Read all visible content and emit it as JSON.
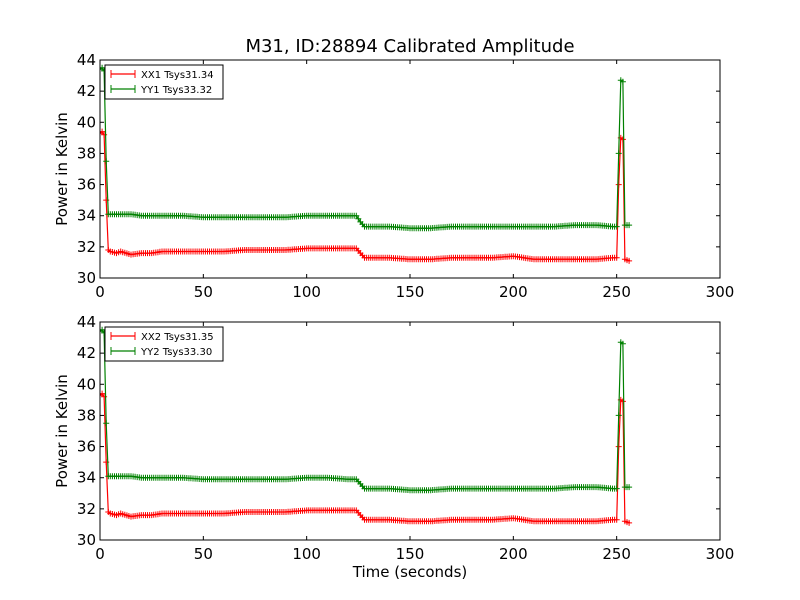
{
  "figure": {
    "title": "M31, ID:28894 Calibrated Amplitude",
    "xlabel": "Time (seconds)"
  },
  "colors": {
    "xx": "#ff0000",
    "yy": "#008000",
    "axis": "#000000",
    "background": "#ffffff"
  },
  "chart_data": [
    {
      "type": "line",
      "title": "M31, ID:28894 Calibrated Amplitude",
      "xlabel": "",
      "ylabel": "Power in Kelvin",
      "xlim": [
        0,
        300
      ],
      "ylim": [
        30,
        44
      ],
      "xticks": [
        0,
        50,
        100,
        150,
        200,
        250,
        300
      ],
      "yticks": [
        30,
        32,
        34,
        36,
        38,
        40,
        42,
        44
      ],
      "grid": false,
      "legend_position": "top-left",
      "series": [
        {
          "name": "XX1 Tsys31.34",
          "color": "#ff0000",
          "marker": "+",
          "x": [
            0,
            1,
            2,
            3,
            4,
            5,
            8,
            10,
            15,
            20,
            25,
            30,
            40,
            50,
            60,
            70,
            80,
            90,
            100,
            110,
            120,
            124,
            126,
            128,
            130,
            140,
            150,
            160,
            170,
            180,
            190,
            200,
            210,
            220,
            230,
            240,
            248,
            250,
            251,
            252,
            253,
            254,
            256
          ],
          "y": [
            39.3,
            39.4,
            39.2,
            35.0,
            31.8,
            31.7,
            31.6,
            31.7,
            31.5,
            31.6,
            31.6,
            31.7,
            31.7,
            31.7,
            31.7,
            31.8,
            31.8,
            31.8,
            31.9,
            31.9,
            31.9,
            31.9,
            31.6,
            31.3,
            31.3,
            31.3,
            31.2,
            31.2,
            31.3,
            31.3,
            31.3,
            31.4,
            31.2,
            31.2,
            31.2,
            31.2,
            31.3,
            31.3,
            36.0,
            39.0,
            38.9,
            31.2,
            31.1
          ]
        },
        {
          "name": "YY1 Tsys33.32",
          "color": "#008000",
          "marker": "+",
          "x": [
            0,
            1,
            2,
            3,
            4,
            5,
            8,
            10,
            15,
            20,
            25,
            30,
            40,
            50,
            60,
            70,
            80,
            90,
            100,
            110,
            120,
            124,
            126,
            128,
            130,
            140,
            150,
            160,
            170,
            180,
            190,
            200,
            210,
            220,
            230,
            240,
            248,
            250,
            251,
            252,
            253,
            254,
            256
          ],
          "y": [
            43.4,
            43.5,
            43.3,
            37.5,
            34.1,
            34.1,
            34.1,
            34.1,
            34.1,
            34.0,
            34.0,
            34.0,
            34.0,
            33.9,
            33.9,
            33.9,
            33.9,
            33.9,
            34.0,
            34.0,
            34.0,
            34.0,
            33.6,
            33.3,
            33.3,
            33.3,
            33.2,
            33.2,
            33.3,
            33.3,
            33.3,
            33.3,
            33.3,
            33.3,
            33.4,
            33.4,
            33.3,
            33.3,
            38.0,
            42.7,
            42.6,
            33.4,
            33.4
          ]
        }
      ]
    },
    {
      "type": "line",
      "title": "",
      "xlabel": "Time (seconds)",
      "ylabel": "Power in Kelvin",
      "xlim": [
        0,
        300
      ],
      "ylim": [
        30,
        44
      ],
      "xticks": [
        0,
        50,
        100,
        150,
        200,
        250,
        300
      ],
      "yticks": [
        30,
        32,
        34,
        36,
        38,
        40,
        42,
        44
      ],
      "grid": false,
      "legend_position": "top-left",
      "series": [
        {
          "name": "XX2 Tsys31.35",
          "color": "#ff0000",
          "marker": "+",
          "x": [
            0,
            1,
            2,
            3,
            4,
            5,
            8,
            10,
            15,
            20,
            25,
            30,
            40,
            50,
            60,
            70,
            80,
            90,
            100,
            110,
            120,
            124,
            126,
            128,
            130,
            140,
            150,
            160,
            170,
            180,
            190,
            200,
            210,
            220,
            230,
            240,
            248,
            250,
            251,
            252,
            253,
            254,
            256
          ],
          "y": [
            39.3,
            39.4,
            39.2,
            35.0,
            31.8,
            31.7,
            31.6,
            31.7,
            31.5,
            31.6,
            31.6,
            31.7,
            31.7,
            31.7,
            31.7,
            31.8,
            31.8,
            31.8,
            31.9,
            31.9,
            31.9,
            31.9,
            31.6,
            31.3,
            31.3,
            31.3,
            31.2,
            31.2,
            31.3,
            31.3,
            31.3,
            31.4,
            31.2,
            31.2,
            31.2,
            31.2,
            31.3,
            31.3,
            36.0,
            39.0,
            38.9,
            31.2,
            31.1
          ]
        },
        {
          "name": "YY2 Tsys33.30",
          "color": "#008000",
          "marker": "+",
          "x": [
            0,
            1,
            2,
            3,
            4,
            5,
            8,
            10,
            15,
            20,
            25,
            30,
            40,
            50,
            60,
            70,
            80,
            90,
            100,
            110,
            120,
            124,
            126,
            128,
            130,
            140,
            150,
            160,
            170,
            180,
            190,
            200,
            210,
            220,
            230,
            240,
            248,
            250,
            251,
            252,
            253,
            254,
            256
          ],
          "y": [
            43.4,
            43.5,
            43.3,
            37.5,
            34.1,
            34.1,
            34.1,
            34.1,
            34.1,
            34.0,
            34.0,
            34.0,
            34.0,
            33.9,
            33.9,
            33.9,
            33.9,
            33.9,
            34.0,
            34.0,
            33.9,
            33.9,
            33.6,
            33.3,
            33.3,
            33.3,
            33.2,
            33.2,
            33.3,
            33.3,
            33.3,
            33.3,
            33.3,
            33.3,
            33.4,
            33.4,
            33.3,
            33.3,
            38.0,
            42.7,
            42.6,
            33.4,
            33.4
          ]
        }
      ]
    }
  ]
}
